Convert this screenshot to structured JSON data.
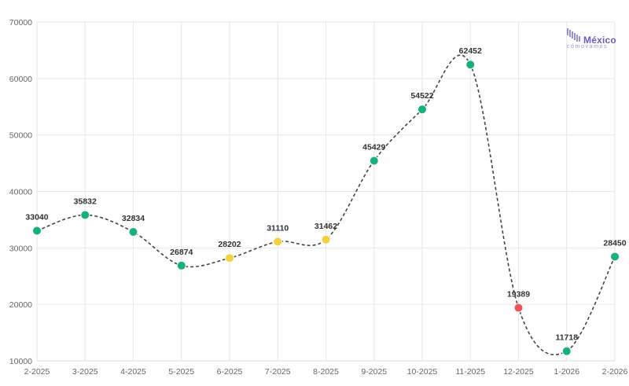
{
  "chart_data": {
    "type": "line",
    "categories": [
      "2-2025",
      "3-2025",
      "4-2025",
      "5-2025",
      "6-2025",
      "7-2025",
      "8-2025",
      "9-2025",
      "10-2025",
      "11-2025",
      "12-2025",
      "1-2026",
      "2-2026"
    ],
    "series": [
      {
        "values": [
          33040,
          35832,
          32834,
          26874,
          28202,
          31110,
          31462,
          45429,
          54522,
          62452,
          19389,
          11718,
          28450
        ],
        "point_colors": [
          "#16b07a",
          "#16b07a",
          "#16b07a",
          "#16b07a",
          "#f4d03f",
          "#f4d03f",
          "#f4d03f",
          "#16b07a",
          "#16b07a",
          "#16b07a",
          "#f05454",
          "#16b07a",
          "#16b07a"
        ],
        "line_style": "dashed",
        "line_color": "#444444"
      }
    ],
    "ylim": [
      10000,
      70000
    ],
    "yticks": [
      10000,
      20000,
      30000,
      40000,
      50000,
      60000,
      70000
    ],
    "title": "",
    "xlabel": "",
    "ylabel": "",
    "grid": true,
    "data_labels": true
  },
  "logo": {
    "main": "México",
    "sub": "cómovamos",
    "color": "#6a5acd"
  }
}
